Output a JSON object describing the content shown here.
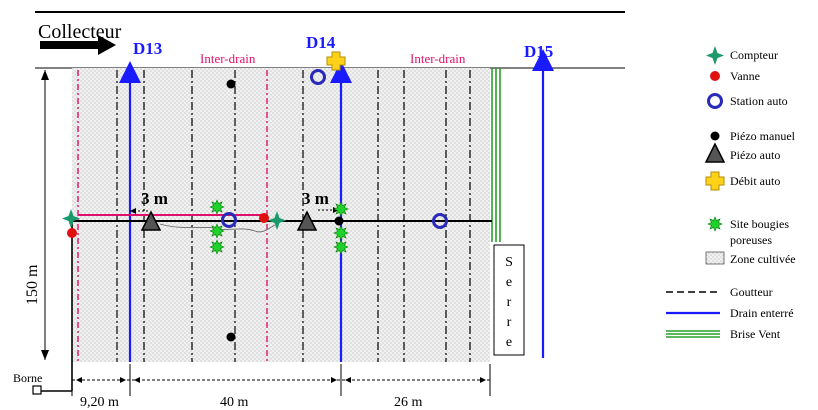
{
  "labels": {
    "collecteur": "Collecteur",
    "d13": "D13",
    "d14": "D14",
    "d15": "D15",
    "inter_drain_1": "Inter-drain",
    "inter_drain_2": "Inter-drain",
    "spacing_1": "3 m",
    "spacing_2": "3 m",
    "height": "150 m",
    "borne": "Borne",
    "width_1": "9,20 m",
    "width_2": "40 m",
    "width_3": "26 m",
    "serre": [
      "S",
      "e",
      "r",
      "r",
      "e"
    ]
  },
  "legend": {
    "compteur": "Compteur",
    "vanne": "Vanne",
    "station_auto": "Station auto",
    "piezo_manuel": "Piézo  manuel",
    "piezo_auto": "Piézo auto",
    "debit_auto": "Débit auto",
    "site_bougies_1": "Site bougies",
    "site_bougies_2": "poreuses",
    "zone_cultivee": "Zone cultivée",
    "goutteur": "Goutteur",
    "drain_enterre": "Drain enterré",
    "brise_vent": "Brise Vent"
  },
  "colors": {
    "drain": "#1a1aff",
    "inter_drain": "#e0106a",
    "compteur": "#1a9a6a",
    "vanne": "#e01010",
    "station": "#2a2ab8",
    "debit": "#ffd21a",
    "bougie": "#1fd12a",
    "brise_vent": "#2aa02a"
  }
}
